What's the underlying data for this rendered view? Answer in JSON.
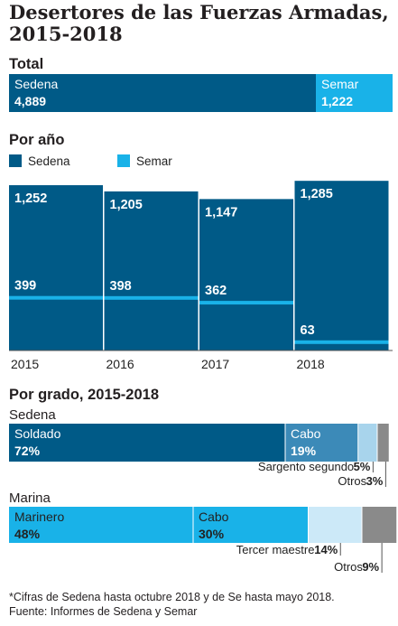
{
  "title": "Desertores de las Fuerzas Armadas, 2015-2018",
  "colors": {
    "sedena": "#005a87",
    "semar": "#19b2e8",
    "light": "#cce9f8",
    "grey": "#8a8a8a",
    "cabo_sedena": "#3c8ab8",
    "sargento": "#a8d4ec"
  },
  "sections": {
    "total": "Total",
    "por_ano": "Por año",
    "por_grado": "Por grado, 2015-2018",
    "sedena": "Sedena",
    "marina": "Marina"
  },
  "chart_data": [
    {
      "type": "bar",
      "title": "Total",
      "series": [
        {
          "name": "Sedena",
          "value": 4889,
          "display": "4,889"
        },
        {
          "name": "Semar",
          "value": 1222,
          "display": "1,222"
        }
      ]
    },
    {
      "type": "bar",
      "title": "Por año",
      "legend": [
        "Sedena",
        "Semar"
      ],
      "categories": [
        "2015",
        "2016",
        "2017",
        "2018"
      ],
      "series": [
        {
          "name": "Sedena",
          "values": [
            1252,
            1205,
            1147,
            1285
          ],
          "labels": [
            "1,252",
            "1,205",
            "1,147",
            "1,285"
          ]
        },
        {
          "name": "Semar",
          "values": [
            399,
            398,
            362,
            63
          ],
          "labels": [
            "399",
            "398",
            "362",
            "63"
          ]
        }
      ]
    },
    {
      "type": "bar",
      "title": "Por grado, 2015-2018",
      "groups": [
        {
          "name": "Sedena",
          "segments": [
            {
              "name": "Soldado",
              "value": 72,
              "label": "72%"
            },
            {
              "name": "Cabo",
              "value": 19,
              "label": "19%"
            },
            {
              "name": "Sargento segundo",
              "value": 5,
              "label": "5%"
            },
            {
              "name": "Otros",
              "value": 3,
              "label": "3%"
            }
          ]
        },
        {
          "name": "Marina",
          "segments": [
            {
              "name": "Marinero",
              "value": 48,
              "label": "48%"
            },
            {
              "name": "Cabo",
              "value": 30,
              "label": "30%"
            },
            {
              "name": "Tercer maestre",
              "value": 14,
              "label": "14%"
            },
            {
              "name": "Otros",
              "value": 9,
              "label": "9%"
            }
          ]
        }
      ]
    }
  ],
  "notes": [
    "*Cifras de Sedena hasta octubre 2018 y de Se  hasta mayo 2018.",
    "Fuente: Informes de Sedena y Semar"
  ]
}
